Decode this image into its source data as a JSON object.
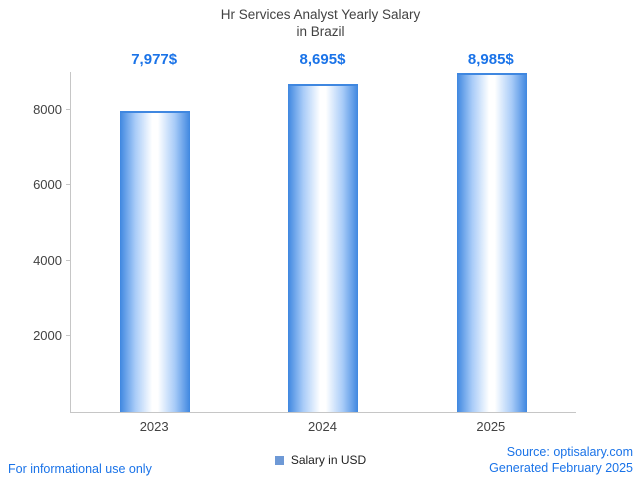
{
  "header": {
    "title_line1": "Hr Services Analyst Yearly Salary",
    "title_line2": "in Brazil"
  },
  "chart_data": {
    "type": "bar",
    "title": "Hr Services Analyst Yearly Salary in Brazil",
    "categories": [
      "2023",
      "2024",
      "2025"
    ],
    "values": [
      7977,
      8695,
      8985
    ],
    "value_labels": [
      "7,977$",
      "8,695$",
      "8,985$"
    ],
    "series_name": "Salary in USD",
    "xlabel": "",
    "ylabel": "",
    "ylim": [
      0,
      9000
    ],
    "yticks": [
      2000,
      4000,
      6000,
      8000
    ],
    "grid": false,
    "legend_position": "bottom",
    "bar_color_edge": "#3f87e0",
    "bar_color_mid": "#a9ccf8",
    "bar_color_center": "#ffffff"
  },
  "legend": {
    "label": "Salary in USD"
  },
  "footer": {
    "disclaimer": "For informational use only",
    "source": "Source: optisalary.com",
    "generated": "Generated February 2025"
  },
  "colors": {
    "accent_blue": "#1a73e8",
    "legend_square": "#6e99d6",
    "axis_line": "#c6c6c6",
    "text": "#424242"
  }
}
